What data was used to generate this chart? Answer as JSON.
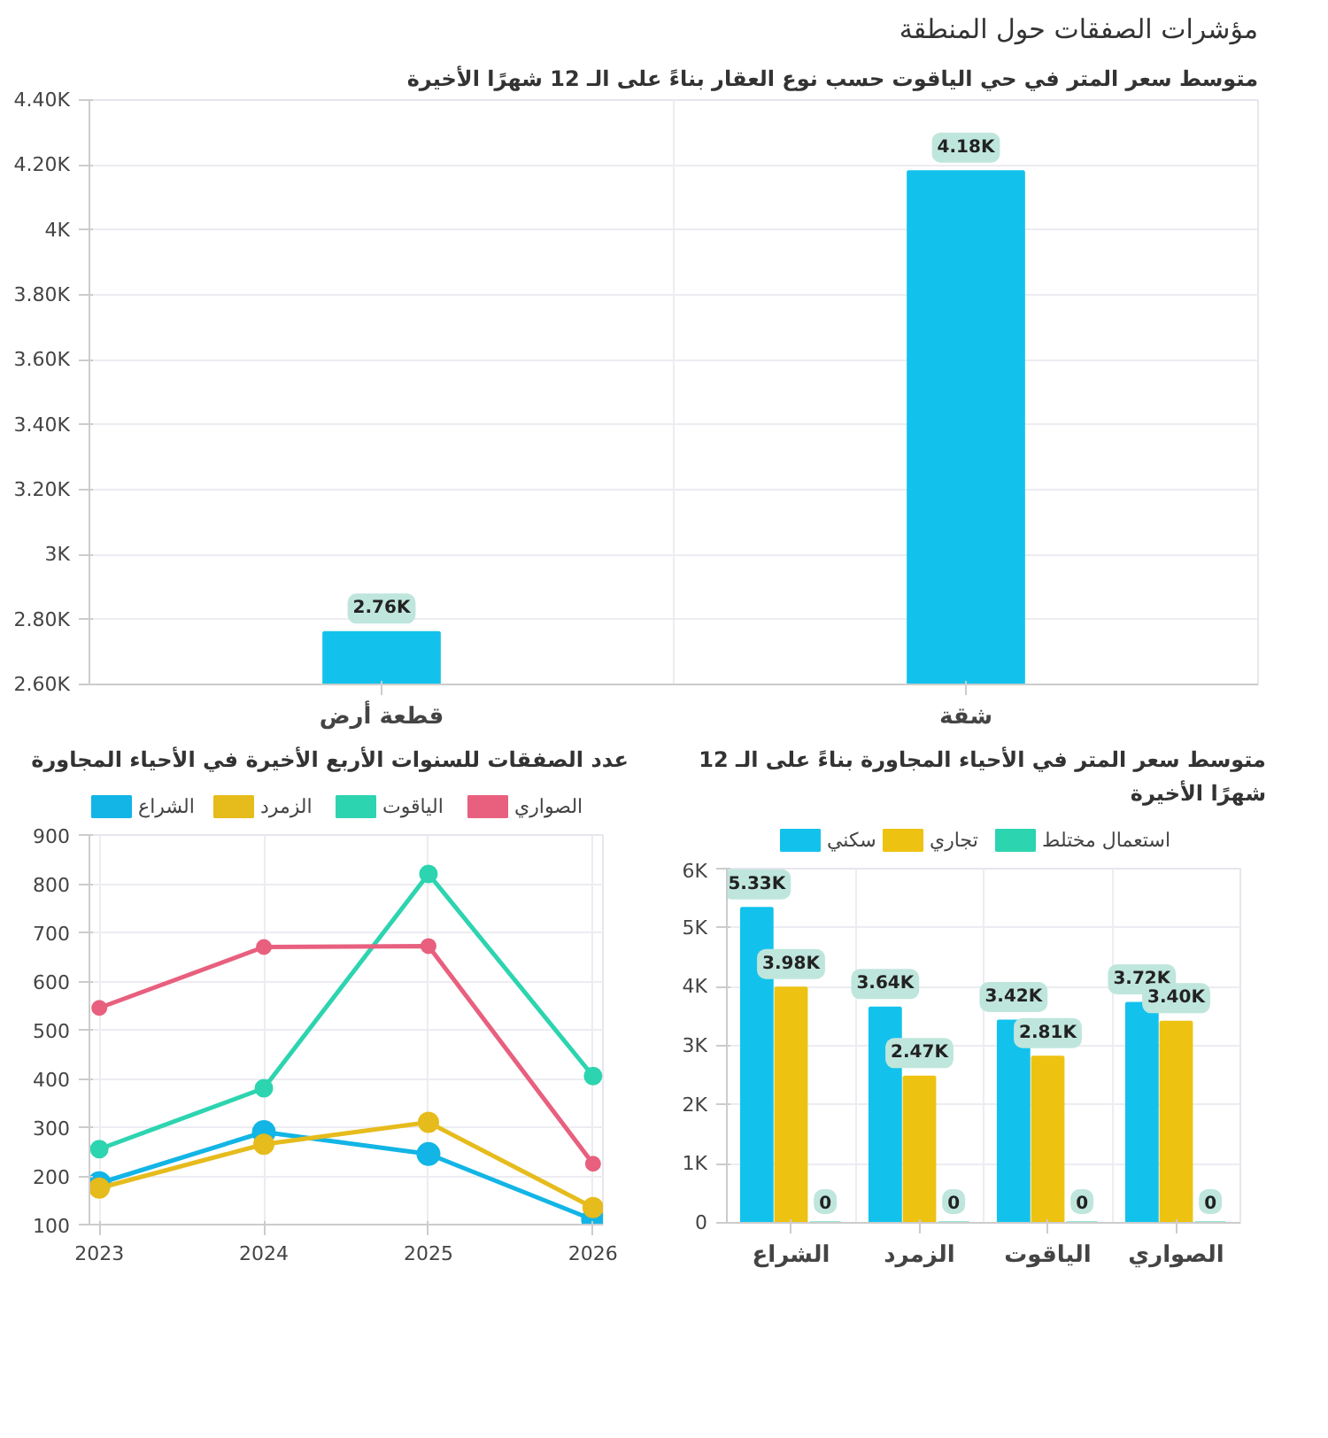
{
  "chart_data": [
    {
      "type": "bar",
      "title": "مؤشرات الصفقات حول المنطقة",
      "subtitle": "متوسط سعر المتر في حي الياقوت حسب نوع العقار بناءً على الـ 12 شهرًا الأخيرة",
      "categories": [
        "قطعة أرض",
        "شقة"
      ],
      "values": [
        2760,
        4180
      ],
      "color": "#12c2ec",
      "value_labels": [
        "2.76K",
        "4.18K"
      ],
      "ylim": [
        2600,
        4400
      ],
      "yticks": [
        {
          "value": 2600,
          "label": "2.60K"
        },
        {
          "value": 2800,
          "label": "2.80K"
        },
        {
          "value": 3000,
          "label": "3K"
        },
        {
          "value": 3200,
          "label": "3.20K"
        },
        {
          "value": 3400,
          "label": "3.40K"
        },
        {
          "value": 3600,
          "label": "3.60K"
        },
        {
          "value": 3800,
          "label": "3.80K"
        },
        {
          "value": 4000,
          "label": "4K"
        },
        {
          "value": 4200,
          "label": "4.20K"
        },
        {
          "value": 4400,
          "label": "4.40K"
        }
      ],
      "grid": true,
      "legend": false
    },
    {
      "type": "line",
      "title": "عدد الصفقات للسنوات الأربع الأخيرة في الأحياء المجاورة",
      "categories": [
        "2023",
        "2024",
        "2025",
        "2026"
      ],
      "series": [
        {
          "name": "الشراع",
          "color": "#12b5e5",
          "values": [
            185,
            290,
            245,
            110
          ]
        },
        {
          "name": "الزمرد",
          "color": "#e6bb1c",
          "values": [
            175,
            265,
            310,
            135
          ]
        },
        {
          "name": "الياقوت",
          "color": "#2dd4b0",
          "values": [
            255,
            380,
            820,
            405
          ]
        },
        {
          "name": "الصواري",
          "color": "#e8607e",
          "values": [
            545,
            670,
            672,
            225
          ]
        }
      ],
      "ylim": [
        100,
        900
      ],
      "yticks": [
        100,
        200,
        300,
        400,
        500,
        600,
        700,
        800,
        900
      ],
      "grid": true,
      "legend": "top",
      "marker": "circle",
      "line_style": "solid"
    },
    {
      "type": "bar",
      "title": "متوسط سعر المتر في الأحياء المجاورة بناءً على الـ 12 شهرًا الأخيرة",
      "categories": [
        "الشراع",
        "الزمرد",
        "الياقوت",
        "الصواري"
      ],
      "series": [
        {
          "name": "سكني",
          "color": "#12c2ec",
          "values": [
            5330,
            3640,
            3420,
            3720
          ],
          "value_labels": [
            "5.33K",
            "3.64K",
            "3.42K",
            "3.72K"
          ]
        },
        {
          "name": "تجاري",
          "color": "#eec211",
          "values": [
            3980,
            2470,
            2810,
            3400
          ],
          "value_labels": [
            "3.98K",
            "2.47K",
            "2.81K",
            "3.40K"
          ]
        },
        {
          "name": "استعمال مختلط",
          "color": "#2dd4b0",
          "values": [
            0,
            0,
            0,
            0
          ],
          "value_labels": [
            "0",
            "0",
            "0",
            "0"
          ]
        }
      ],
      "ylim": [
        0,
        6000
      ],
      "yticks": [
        {
          "value": 0,
          "label": "0"
        },
        {
          "value": 1000,
          "label": "1K"
        },
        {
          "value": 2000,
          "label": "2K"
        },
        {
          "value": 3000,
          "label": "3K"
        },
        {
          "value": 4000,
          "label": "4K"
        },
        {
          "value": 5000,
          "label": "5K"
        },
        {
          "value": 6000,
          "label": "6K"
        }
      ],
      "grid": true,
      "legend": "top"
    }
  ]
}
